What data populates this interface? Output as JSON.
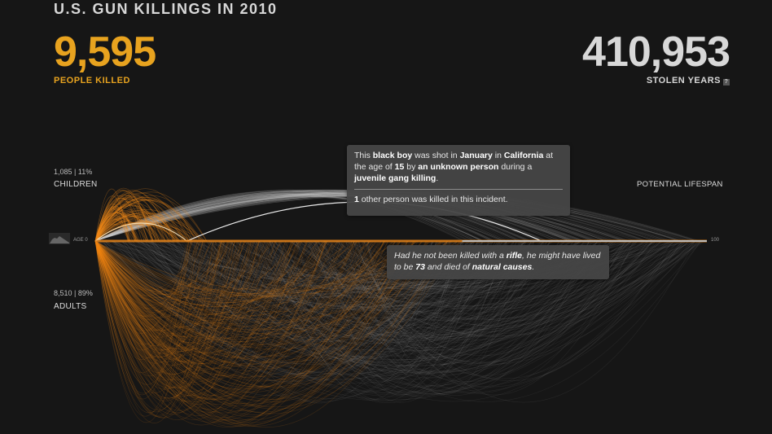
{
  "header": {
    "title": "U.S. GUN KILLINGS IN 2010",
    "killed_value": "9,595",
    "killed_label": "PEOPLE KILLED",
    "stolen_value": "410,953",
    "stolen_label": "STOLEN YEARS",
    "help_glyph": "?"
  },
  "groups": {
    "children_stat": "1,085 | 11%",
    "children_label": "CHILDREN",
    "adults_stat": "8,510 | 89%",
    "adults_label": "ADULTS",
    "lifespan_label": "POTENTIAL LIFESPAN"
  },
  "axis": {
    "start_label": "AGE 0",
    "end_label": "100"
  },
  "tooltip_victim": {
    "t1": "This ",
    "t2": "black boy",
    "t3": " was shot in ",
    "t4": "January",
    "t5": " in ",
    "t6": "California",
    "t7": " at the age of ",
    "t8": "15",
    "t9": " by ",
    "t10": "an unknown person",
    "t11": " during a ",
    "t12": "juvenile gang killing",
    "t13": ".",
    "f1": "1",
    "f2": " other person was killed in this incident."
  },
  "tooltip_lifespan": {
    "t1": "Had he not been killed with a ",
    "t2": "rifle",
    "t3": ", he might have lived to be ",
    "t4": "73",
    "t5": " and died of ",
    "t6": "natural causes",
    "t7": "."
  },
  "colors": {
    "background": "#161616",
    "killed_accent": "#e8a31f",
    "arc_killed": "#f08a1a",
    "arc_stolen": "#d4d4d4",
    "text_light": "#d8d8d8"
  },
  "chart_data": {
    "type": "arc",
    "x_axis": {
      "label_start": "AGE 0",
      "label_end": "100",
      "range": [
        0,
        100
      ]
    },
    "groups": [
      {
        "name": "CHILDREN",
        "count": 1085,
        "percent": 11
      },
      {
        "name": "ADULTS",
        "count": 8510,
        "percent": 89
      }
    ],
    "totals": {
      "people_killed": 9595,
      "stolen_years": 410953
    },
    "highlighted_victim": {
      "race": "black",
      "gender": "boy",
      "month": "January",
      "state": "California",
      "age_at_death": 15,
      "shooter": "an unknown person",
      "circumstance": "juvenile gang killing",
      "other_victims": 1,
      "weapon": "rifle",
      "potential_lifespan": 73,
      "potential_death_cause": "natural causes"
    }
  }
}
